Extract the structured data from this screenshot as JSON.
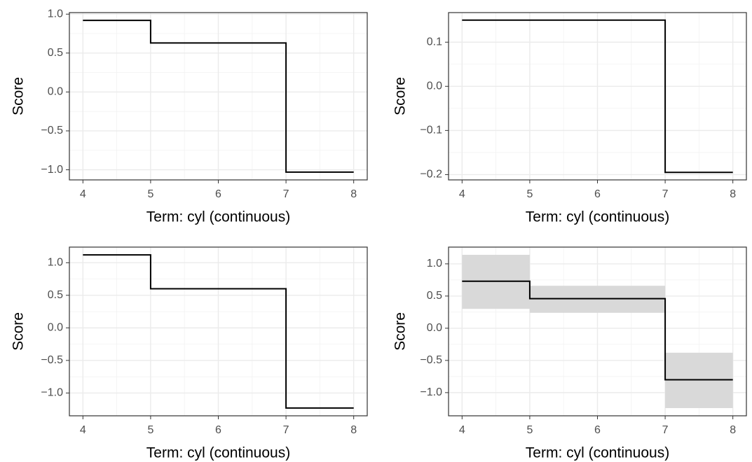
{
  "chart_data": [
    {
      "type": "step",
      "x": [
        4,
        5,
        7,
        8
      ],
      "values": [
        0.92,
        0.63,
        -1.03,
        -1.03
      ],
      "color": "#000000",
      "xlim": [
        3.8,
        8.2
      ],
      "ylim": [
        -1.13,
        1.02
      ],
      "xticks": [
        4,
        5,
        6,
        7,
        8
      ],
      "yticks": [
        {
          "value": -1,
          "label": "−1.0"
        },
        {
          "value": -0.5,
          "label": "−0.5"
        },
        {
          "value": 0,
          "label": "0.0"
        },
        {
          "value": 0.5,
          "label": "0.5"
        },
        {
          "value": 1,
          "label": "1.0"
        }
      ],
      "xlabel": "Term: cyl (continuous)",
      "ylabel": "Score",
      "grid": true
    },
    {
      "type": "step",
      "x": [
        4,
        5,
        7,
        8
      ],
      "values": [
        0.15,
        0.15,
        -0.195,
        -0.195
      ],
      "color": "#000000",
      "xlim": [
        3.8,
        8.2
      ],
      "ylim": [
        -0.212,
        0.167
      ],
      "xticks": [
        4,
        5,
        6,
        7,
        8
      ],
      "yticks": [
        {
          "value": -0.2,
          "label": "−0.2"
        },
        {
          "value": -0.1,
          "label": "−0.1"
        },
        {
          "value": 0,
          "label": "0.0"
        },
        0.1
      ],
      "xlabel": "Term: cyl (continuous)",
      "ylabel": "Score",
      "grid": true
    },
    {
      "type": "step",
      "x": [
        4,
        5,
        7,
        8
      ],
      "values": [
        1.12,
        0.6,
        -1.23,
        -1.23
      ],
      "color": "#000000",
      "xlim": [
        3.8,
        8.2
      ],
      "ylim": [
        -1.35,
        1.24
      ],
      "xticks": [
        4,
        5,
        6,
        7,
        8
      ],
      "yticks": [
        {
          "value": -1,
          "label": "−1.0"
        },
        {
          "value": -0.5,
          "label": "−0.5"
        },
        {
          "value": 0,
          "label": "0.0"
        },
        {
          "value": 0.5,
          "label": "0.5"
        },
        {
          "value": 1,
          "label": "1.0"
        }
      ],
      "xlabel": "Term: cyl (continuous)",
      "ylabel": "Score",
      "grid": true
    },
    {
      "type": "step",
      "x": [
        4,
        5,
        7,
        8
      ],
      "values": [
        0.73,
        0.46,
        -0.8,
        -0.8
      ],
      "color": "#000000",
      "lower": [
        0.3,
        0.24,
        -1.24,
        -1.24
      ],
      "upper": [
        1.14,
        0.66,
        -0.38,
        -0.38
      ],
      "band_color": "#d9d9d9",
      "xlim": [
        3.8,
        8.2
      ],
      "ylim": [
        -1.36,
        1.26
      ],
      "xticks": [
        4,
        5,
        6,
        7,
        8
      ],
      "yticks": [
        {
          "value": -1,
          "label": "−1.0"
        },
        {
          "value": -0.5,
          "label": "−0.5"
        },
        {
          "value": 0,
          "label": "0.0"
        },
        {
          "value": 0.5,
          "label": "0.5"
        },
        {
          "value": 1,
          "label": "1.0"
        }
      ],
      "xlabel": "Term: cyl (continuous)",
      "ylabel": "Score",
      "grid": true
    }
  ]
}
